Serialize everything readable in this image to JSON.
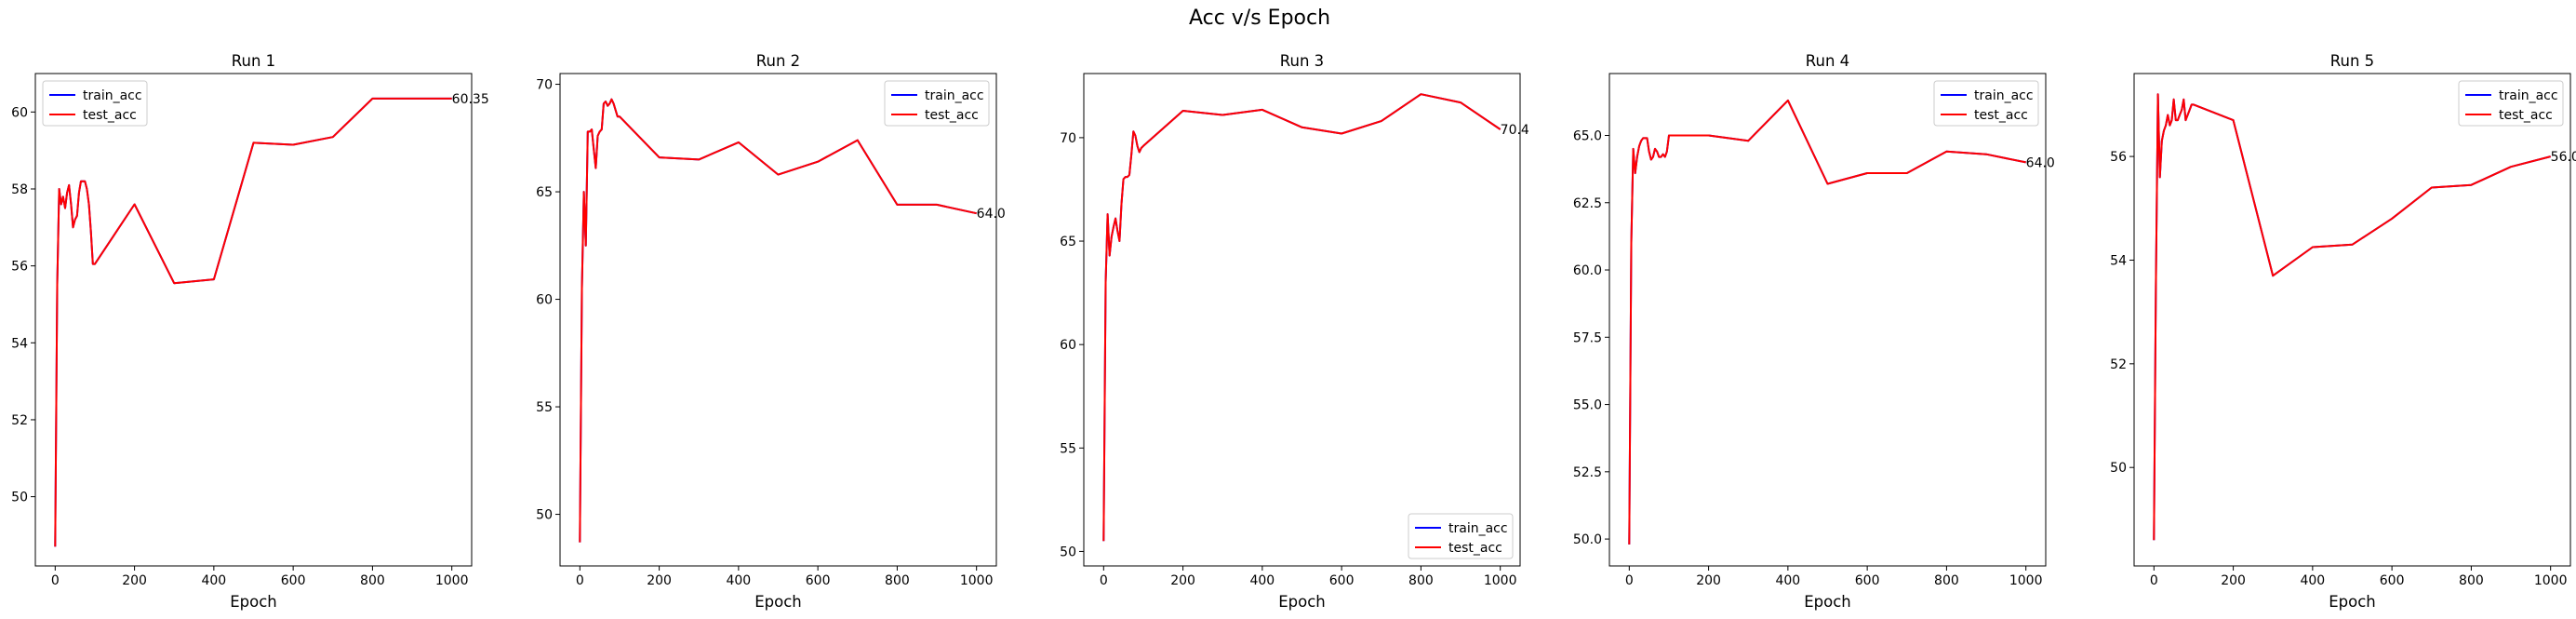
{
  "figure": {
    "suptitle": "Acc v/s Epoch"
  },
  "colors": {
    "train": "#0000ff",
    "test": "#ff0000"
  },
  "chart_data": [
    {
      "type": "line",
      "title": "Run 1",
      "xlabel": "Epoch",
      "ylabel": "",
      "xlim": [
        -50,
        1050
      ],
      "ylim": [
        48.2,
        61.0
      ],
      "xticks": [
        0,
        200,
        400,
        600,
        800,
        1000
      ],
      "yticks": [
        50,
        52,
        54,
        56,
        58,
        60
      ],
      "ytick_labels": [
        "50",
        "52",
        "54",
        "56",
        "58",
        "60"
      ],
      "legend": {
        "position": "top-left",
        "entries": [
          "train_acc",
          "test_acc"
        ]
      },
      "final_label": "60.35",
      "x": [
        0,
        5,
        10,
        15,
        20,
        25,
        30,
        35,
        40,
        45,
        50,
        55,
        60,
        65,
        70,
        75,
        80,
        85,
        90,
        95,
        100,
        200,
        300,
        400,
        500,
        600,
        700,
        800,
        900,
        1000
      ],
      "series": [
        {
          "name": "train_acc",
          "values": [
            48.7,
            55.5,
            58.0,
            57.6,
            57.8,
            57.5,
            57.9,
            58.1,
            57.6,
            57.0,
            57.2,
            57.3,
            57.9,
            58.2,
            58.2,
            58.2,
            58.0,
            57.6,
            56.9,
            56.05,
            56.05,
            57.6,
            55.55,
            55.65,
            59.2,
            59.15,
            59.35,
            60.35,
            60.35,
            60.35
          ]
        },
        {
          "name": "test_acc",
          "values": [
            48.7,
            55.5,
            58.0,
            57.6,
            57.8,
            57.5,
            57.9,
            58.1,
            57.6,
            57.0,
            57.2,
            57.3,
            57.9,
            58.2,
            58.2,
            58.2,
            58.0,
            57.6,
            56.9,
            56.05,
            56.05,
            57.6,
            55.55,
            55.65,
            59.2,
            59.15,
            59.35,
            60.35,
            60.35,
            60.35
          ]
        }
      ]
    },
    {
      "type": "line",
      "title": "Run 2",
      "xlabel": "Epoch",
      "ylabel": "",
      "xlim": [
        -50,
        1050
      ],
      "ylim": [
        47.6,
        70.5
      ],
      "xticks": [
        0,
        200,
        400,
        600,
        800,
        1000
      ],
      "yticks": [
        50,
        55,
        60,
        65,
        70
      ],
      "ytick_labels": [
        "50",
        "55",
        "60",
        "65",
        "70"
      ],
      "legend": {
        "position": "top-right",
        "entries": [
          "train_acc",
          "test_acc"
        ]
      },
      "final_label": "64.0",
      "x": [
        0,
        5,
        10,
        15,
        20,
        25,
        30,
        35,
        40,
        45,
        50,
        55,
        60,
        65,
        70,
        75,
        80,
        85,
        90,
        95,
        100,
        200,
        300,
        400,
        500,
        600,
        700,
        800,
        900,
        1000
      ],
      "series": [
        {
          "name": "train_acc",
          "values": [
            48.7,
            60.5,
            65.0,
            62.5,
            67.8,
            67.8,
            67.9,
            67.0,
            66.1,
            67.6,
            67.8,
            67.9,
            69.1,
            69.2,
            69.0,
            69.1,
            69.3,
            69.1,
            68.8,
            68.5,
            68.5,
            66.6,
            66.5,
            67.3,
            65.8,
            66.4,
            67.4,
            64.4,
            64.4,
            64.0
          ]
        },
        {
          "name": "test_acc",
          "values": [
            48.7,
            60.5,
            65.0,
            62.5,
            67.8,
            67.8,
            67.9,
            67.0,
            66.1,
            67.6,
            67.8,
            67.9,
            69.1,
            69.2,
            69.0,
            69.1,
            69.3,
            69.1,
            68.8,
            68.5,
            68.5,
            66.6,
            66.5,
            67.3,
            65.8,
            66.4,
            67.4,
            64.4,
            64.4,
            64.0
          ]
        }
      ]
    },
    {
      "type": "line",
      "title": "Run 3",
      "xlabel": "Epoch",
      "ylabel": "",
      "xlim": [
        -50,
        1050
      ],
      "ylim": [
        49.3,
        73.1
      ],
      "xticks": [
        0,
        200,
        400,
        600,
        800,
        1000
      ],
      "yticks": [
        50,
        55,
        60,
        65,
        70
      ],
      "ytick_labels": [
        "50",
        "55",
        "60",
        "65",
        "70"
      ],
      "legend": {
        "position": "bottom-right",
        "entries": [
          "train_acc",
          "test_acc"
        ]
      },
      "final_label": "70.4",
      "x": [
        0,
        5,
        10,
        15,
        20,
        25,
        30,
        35,
        40,
        45,
        50,
        55,
        60,
        65,
        70,
        75,
        80,
        85,
        90,
        95,
        100,
        200,
        300,
        400,
        500,
        600,
        700,
        800,
        900,
        1000
      ],
      "series": [
        {
          "name": "train_acc",
          "values": [
            50.5,
            63.0,
            66.3,
            64.3,
            65.2,
            65.7,
            66.1,
            65.5,
            65.0,
            66.8,
            68.0,
            68.1,
            68.1,
            68.2,
            69.2,
            70.3,
            70.1,
            69.6,
            69.3,
            69.5,
            69.6,
            71.3,
            71.1,
            71.35,
            70.5,
            70.2,
            70.8,
            72.1,
            71.7,
            70.4
          ]
        },
        {
          "name": "test_acc",
          "values": [
            50.5,
            63.0,
            66.3,
            64.3,
            65.2,
            65.7,
            66.1,
            65.5,
            65.0,
            66.8,
            68.0,
            68.1,
            68.1,
            68.2,
            69.2,
            70.3,
            70.1,
            69.6,
            69.3,
            69.5,
            69.6,
            71.3,
            71.1,
            71.35,
            70.5,
            70.2,
            70.8,
            72.1,
            71.7,
            70.4
          ]
        }
      ]
    },
    {
      "type": "line",
      "title": "Run 4",
      "xlabel": "Epoch",
      "ylabel": "",
      "xlim": [
        -50,
        1050
      ],
      "ylim": [
        49.0,
        67.3
      ],
      "xticks": [
        0,
        200,
        400,
        600,
        800,
        1000
      ],
      "yticks": [
        50.0,
        52.5,
        55.0,
        57.5,
        60.0,
        62.5,
        65.0
      ],
      "ytick_labels": [
        "50.0",
        "52.5",
        "55.0",
        "57.5",
        "60.0",
        "62.5",
        "65.0"
      ],
      "legend": {
        "position": "top-right",
        "entries": [
          "train_acc",
          "test_acc"
        ]
      },
      "final_label": "64.0",
      "x": [
        0,
        5,
        10,
        15,
        20,
        25,
        30,
        35,
        40,
        45,
        50,
        55,
        60,
        65,
        70,
        75,
        80,
        85,
        90,
        95,
        100,
        200,
        300,
        400,
        500,
        600,
        700,
        800,
        900,
        1000
      ],
      "series": [
        {
          "name": "train_acc",
          "values": [
            49.8,
            61.0,
            64.5,
            63.6,
            64.2,
            64.6,
            64.8,
            64.9,
            64.9,
            64.9,
            64.4,
            64.1,
            64.2,
            64.5,
            64.4,
            64.2,
            64.2,
            64.3,
            64.2,
            64.4,
            65.0,
            65.0,
            64.8,
            66.3,
            63.2,
            63.6,
            63.6,
            64.4,
            64.3,
            64.0
          ]
        },
        {
          "name": "test_acc",
          "values": [
            49.8,
            61.0,
            64.5,
            63.6,
            64.2,
            64.6,
            64.8,
            64.9,
            64.9,
            64.9,
            64.4,
            64.1,
            64.2,
            64.5,
            64.4,
            64.2,
            64.2,
            64.3,
            64.2,
            64.4,
            65.0,
            65.0,
            64.8,
            66.3,
            63.2,
            63.6,
            63.6,
            64.4,
            64.3,
            64.0
          ]
        }
      ]
    },
    {
      "type": "line",
      "title": "Run 5",
      "xlabel": "Epoch",
      "ylabel": "",
      "xlim": [
        -50,
        1050
      ],
      "ylim": [
        48.1,
        57.6
      ],
      "xticks": [
        0,
        200,
        400,
        600,
        800,
        1000
      ],
      "yticks": [
        50,
        52,
        54,
        56
      ],
      "ytick_labels": [
        "50",
        "52",
        "54",
        "56"
      ],
      "legend": {
        "position": "top-right",
        "entries": [
          "train_acc",
          "test_acc"
        ]
      },
      "final_label": "56.0",
      "x": [
        0,
        5,
        10,
        15,
        20,
        25,
        30,
        35,
        40,
        45,
        50,
        55,
        60,
        65,
        70,
        75,
        80,
        85,
        90,
        95,
        100,
        200,
        300,
        400,
        500,
        600,
        700,
        800,
        900,
        1000
      ],
      "series": [
        {
          "name": "train_acc",
          "values": [
            48.6,
            53.5,
            57.2,
            55.6,
            56.3,
            56.5,
            56.6,
            56.8,
            56.6,
            56.7,
            57.1,
            56.7,
            56.7,
            56.8,
            56.9,
            57.1,
            56.7,
            56.8,
            56.9,
            57.0,
            57.0,
            56.7,
            53.7,
            54.25,
            54.3,
            54.8,
            55.4,
            55.45,
            55.8,
            56.0
          ]
        },
        {
          "name": "test_acc",
          "values": [
            48.6,
            53.5,
            57.2,
            55.6,
            56.3,
            56.5,
            56.6,
            56.8,
            56.6,
            56.7,
            57.1,
            56.7,
            56.7,
            56.8,
            56.9,
            57.1,
            56.7,
            56.8,
            56.9,
            57.0,
            57.0,
            56.7,
            53.7,
            54.25,
            54.3,
            54.8,
            55.4,
            55.45,
            55.8,
            56.0
          ]
        }
      ]
    }
  ]
}
